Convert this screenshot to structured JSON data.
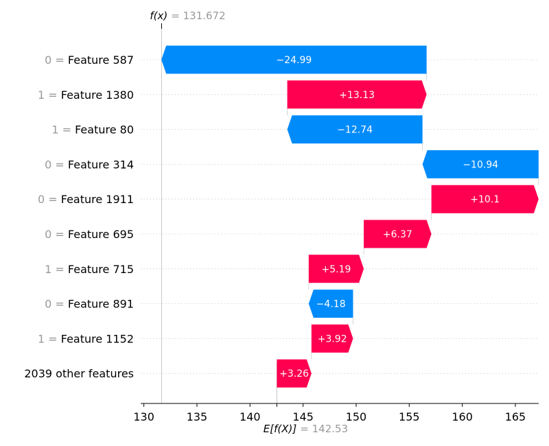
{
  "chart_data": {
    "type": "bar",
    "subtype": "waterfall",
    "fx_label": "f(x)",
    "fx_value": "131.672",
    "efx_label": "E[f(X)]",
    "efx_value": "142.53",
    "features": [
      {
        "value": "0",
        "name": "Feature 587",
        "contribution": -24.99,
        "label": "−24.99"
      },
      {
        "value": "1",
        "name": "Feature 1380",
        "contribution": 13.13,
        "label": "+13.13"
      },
      {
        "value": "1",
        "name": "Feature 80",
        "contribution": -12.74,
        "label": "−12.74"
      },
      {
        "value": "0",
        "name": "Feature 314",
        "contribution": -10.94,
        "label": "−10.94"
      },
      {
        "value": "0",
        "name": "Feature 1911",
        "contribution": 10.1,
        "label": "+10.1"
      },
      {
        "value": "0",
        "name": "Feature 695",
        "contribution": 6.37,
        "label": "+6.37"
      },
      {
        "value": "1",
        "name": "Feature 715",
        "contribution": 5.19,
        "label": "+5.19"
      },
      {
        "value": "0",
        "name": "Feature 891",
        "contribution": -4.18,
        "label": "−4.18"
      },
      {
        "value": "1",
        "name": "Feature 1152",
        "contribution": 3.92,
        "label": "+3.92"
      },
      {
        "value": "",
        "name": "2039 other features",
        "contribution": 3.26,
        "label": "+3.26"
      }
    ],
    "xticks": [
      130,
      135,
      140,
      145,
      150,
      155,
      160,
      165
    ],
    "xlim": [
      129.7,
      167.2
    ],
    "colors": {
      "positive": "#ff0051",
      "negative": "#008bfb",
      "grid": "#cccccc",
      "label_value": "#999999"
    }
  }
}
